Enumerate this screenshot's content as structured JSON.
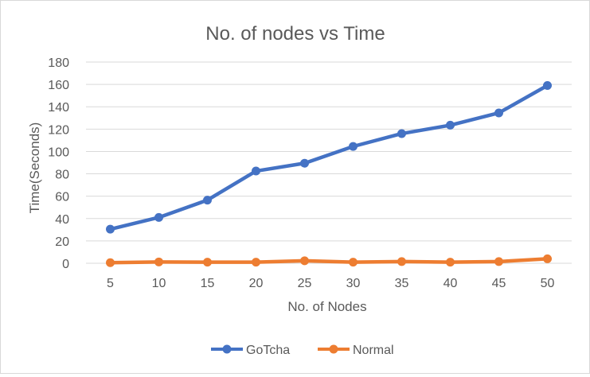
{
  "chart_data": {
    "type": "line",
    "title": "No. of nodes vs Time",
    "xlabel": "No. of Nodes",
    "ylabel": "Time(Seconds)",
    "categories": [
      "5",
      "10",
      "15",
      "20",
      "25",
      "30",
      "35",
      "40",
      "45",
      "50"
    ],
    "ylim": [
      0,
      180
    ],
    "yticks": [
      0,
      20,
      40,
      60,
      80,
      100,
      120,
      140,
      160,
      180
    ],
    "grid": true,
    "legend": "bottom",
    "series": [
      {
        "name": "GoTcha",
        "color": "#4472c4",
        "values": [
          30.5,
          41,
          56.5,
          82.5,
          89.5,
          104.5,
          116,
          123.5,
          134.5,
          159
        ]
      },
      {
        "name": "Normal",
        "color": "#ed7d31",
        "values": [
          0.5,
          1.2,
          1,
          1,
          2.2,
          1,
          1.5,
          1,
          1.5,
          4
        ]
      }
    ]
  }
}
